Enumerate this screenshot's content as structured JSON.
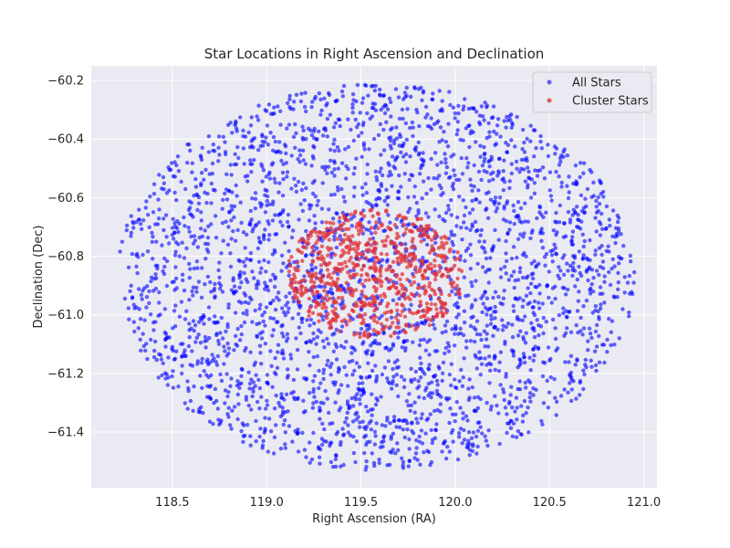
{
  "chart_data": {
    "type": "scatter",
    "title": "Star Locations in Right Ascension and Declination",
    "xlabel": "Right Ascension (RA)",
    "ylabel": "Declination (Dec)",
    "xlim": [
      118.07,
      121.07
    ],
    "ylim": [
      -61.59,
      -60.15
    ],
    "xticks": [
      118.5,
      119.0,
      119.5,
      120.0,
      120.5,
      121.0
    ],
    "yticks": [
      -60.2,
      -60.4,
      -60.6,
      -60.8,
      -61.0,
      -61.2,
      -61.4
    ],
    "grid": true,
    "legend_position": "top-right",
    "series": [
      {
        "name": "All Stars",
        "color": "#0000ff",
        "center": [
          119.58,
          -60.87
        ],
        "radius": [
          1.37,
          0.66
        ],
        "count": 3000
      },
      {
        "name": "Cluster Stars",
        "color": "#e0343a",
        "center": [
          119.58,
          -60.86
        ],
        "radius": [
          0.47,
          0.22
        ],
        "count": 700
      }
    ],
    "tick_format": {
      "x": [
        "118.5",
        "119.0",
        "119.5",
        "120.0",
        "120.5",
        "121.0"
      ],
      "y": [
        "−60.2",
        "−60.4",
        "−60.6",
        "−60.8",
        "−61.0",
        "−61.2",
        "−61.4"
      ]
    }
  }
}
